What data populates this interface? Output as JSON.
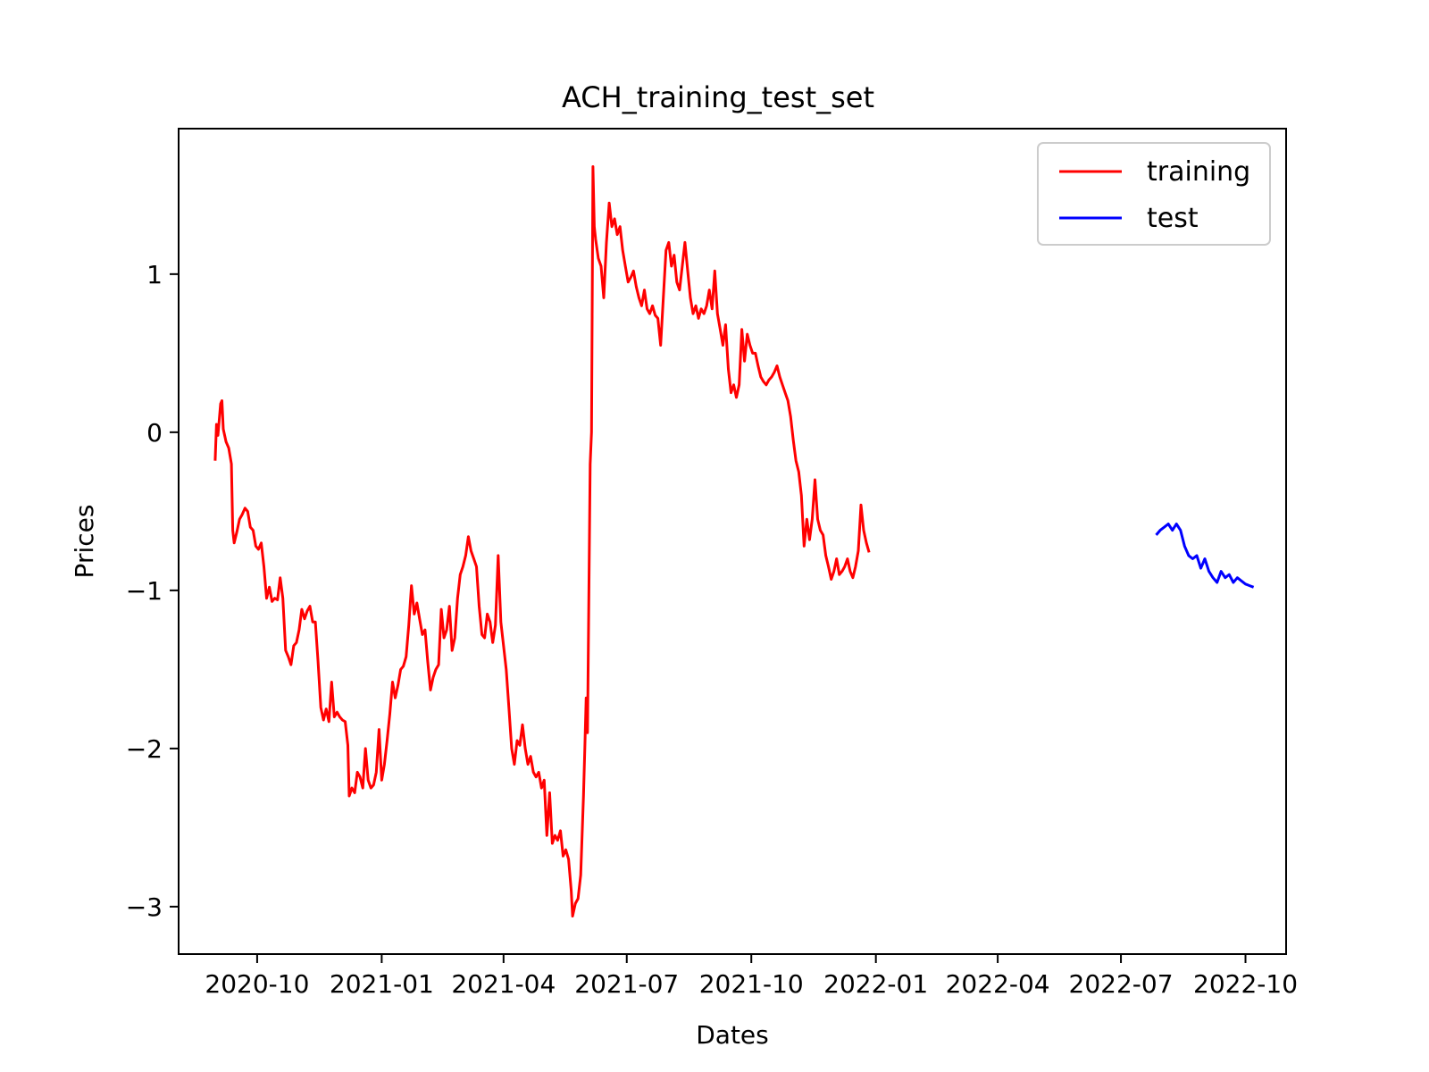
{
  "chart_data": {
    "type": "line",
    "title": "ACH_training_test_set",
    "xlabel": "Dates",
    "ylabel": "Prices",
    "x_ticks": [
      "2020-10",
      "2021-01",
      "2021-04",
      "2021-07",
      "2021-10",
      "2022-01",
      "2022-04",
      "2022-07",
      "2022-10"
    ],
    "y_ticks": [
      1,
      0,
      -1,
      -2,
      -3
    ],
    "y_tick_labels": [
      "1",
      "0",
      "−1",
      "−2",
      "−3"
    ],
    "xlim": [
      "2020-08-04",
      "2022-10-31"
    ],
    "ylim": [
      -3.3,
      1.92
    ],
    "grid": false,
    "legend_position": "top-right",
    "series": [
      {
        "name": "training",
        "color": "#ff0000",
        "points": [
          [
            "2020-08-31",
            -0.18
          ],
          [
            "2020-09-01",
            0.05
          ],
          [
            "2020-09-02",
            -0.02
          ],
          [
            "2020-09-03",
            0.08
          ],
          [
            "2020-09-04",
            0.18
          ],
          [
            "2020-09-05",
            0.2
          ],
          [
            "2020-09-06",
            0.02
          ],
          [
            "2020-09-08",
            -0.06
          ],
          [
            "2020-09-10",
            -0.1
          ],
          [
            "2020-09-12",
            -0.2
          ],
          [
            "2020-09-13",
            -0.62
          ],
          [
            "2020-09-14",
            -0.7
          ],
          [
            "2020-09-16",
            -0.63
          ],
          [
            "2020-09-18",
            -0.55
          ],
          [
            "2020-09-20",
            -0.52
          ],
          [
            "2020-09-22",
            -0.48
          ],
          [
            "2020-09-24",
            -0.5
          ],
          [
            "2020-09-26",
            -0.6
          ],
          [
            "2020-09-28",
            -0.62
          ],
          [
            "2020-09-30",
            -0.72
          ],
          [
            "2020-10-02",
            -0.74
          ],
          [
            "2020-10-04",
            -0.7
          ],
          [
            "2020-10-06",
            -0.85
          ],
          [
            "2020-10-08",
            -1.05
          ],
          [
            "2020-10-10",
            -0.98
          ],
          [
            "2020-10-12",
            -1.07
          ],
          [
            "2020-10-14",
            -1.05
          ],
          [
            "2020-10-16",
            -1.06
          ],
          [
            "2020-10-18",
            -0.92
          ],
          [
            "2020-10-20",
            -1.05
          ],
          [
            "2020-10-22",
            -1.38
          ],
          [
            "2020-10-24",
            -1.42
          ],
          [
            "2020-10-26",
            -1.47
          ],
          [
            "2020-10-28",
            -1.35
          ],
          [
            "2020-10-30",
            -1.33
          ],
          [
            "2020-11-01",
            -1.25
          ],
          [
            "2020-11-03",
            -1.12
          ],
          [
            "2020-11-05",
            -1.18
          ],
          [
            "2020-11-07",
            -1.13
          ],
          [
            "2020-11-09",
            -1.1
          ],
          [
            "2020-11-11",
            -1.2
          ],
          [
            "2020-11-13",
            -1.2
          ],
          [
            "2020-11-15",
            -1.45
          ],
          [
            "2020-11-17",
            -1.74
          ],
          [
            "2020-11-19",
            -1.82
          ],
          [
            "2020-11-21",
            -1.75
          ],
          [
            "2020-11-23",
            -1.83
          ],
          [
            "2020-11-25",
            -1.58
          ],
          [
            "2020-11-27",
            -1.8
          ],
          [
            "2020-11-29",
            -1.77
          ],
          [
            "2020-12-01",
            -1.8
          ],
          [
            "2020-12-03",
            -1.82
          ],
          [
            "2020-12-05",
            -1.83
          ],
          [
            "2020-12-07",
            -1.98
          ],
          [
            "2020-12-08",
            -2.3
          ],
          [
            "2020-12-10",
            -2.25
          ],
          [
            "2020-12-12",
            -2.28
          ],
          [
            "2020-12-14",
            -2.15
          ],
          [
            "2020-12-16",
            -2.18
          ],
          [
            "2020-12-18",
            -2.25
          ],
          [
            "2020-12-20",
            -2.0
          ],
          [
            "2020-12-22",
            -2.2
          ],
          [
            "2020-12-24",
            -2.25
          ],
          [
            "2020-12-26",
            -2.23
          ],
          [
            "2020-12-28",
            -2.15
          ],
          [
            "2020-12-30",
            -1.88
          ],
          [
            "2021-01-01",
            -2.2
          ],
          [
            "2021-01-03",
            -2.1
          ],
          [
            "2021-01-05",
            -1.95
          ],
          [
            "2021-01-07",
            -1.78
          ],
          [
            "2021-01-09",
            -1.58
          ],
          [
            "2021-01-11",
            -1.68
          ],
          [
            "2021-01-13",
            -1.6
          ],
          [
            "2021-01-15",
            -1.5
          ],
          [
            "2021-01-17",
            -1.48
          ],
          [
            "2021-01-19",
            -1.42
          ],
          [
            "2021-01-21",
            -1.22
          ],
          [
            "2021-01-23",
            -0.97
          ],
          [
            "2021-01-25",
            -1.15
          ],
          [
            "2021-01-27",
            -1.08
          ],
          [
            "2021-01-29",
            -1.18
          ],
          [
            "2021-01-31",
            -1.28
          ],
          [
            "2021-02-02",
            -1.25
          ],
          [
            "2021-02-04",
            -1.45
          ],
          [
            "2021-02-06",
            -1.63
          ],
          [
            "2021-02-08",
            -1.55
          ],
          [
            "2021-02-10",
            -1.5
          ],
          [
            "2021-02-12",
            -1.47
          ],
          [
            "2021-02-14",
            -1.12
          ],
          [
            "2021-02-16",
            -1.3
          ],
          [
            "2021-02-18",
            -1.25
          ],
          [
            "2021-02-20",
            -1.1
          ],
          [
            "2021-02-22",
            -1.38
          ],
          [
            "2021-02-24",
            -1.3
          ],
          [
            "2021-02-26",
            -1.05
          ],
          [
            "2021-02-28",
            -0.9
          ],
          [
            "2021-03-02",
            -0.85
          ],
          [
            "2021-03-04",
            -0.78
          ],
          [
            "2021-03-06",
            -0.66
          ],
          [
            "2021-03-08",
            -0.75
          ],
          [
            "2021-03-10",
            -0.8
          ],
          [
            "2021-03-12",
            -0.85
          ],
          [
            "2021-03-14",
            -1.1
          ],
          [
            "2021-03-16",
            -1.28
          ],
          [
            "2021-03-18",
            -1.3
          ],
          [
            "2021-03-20",
            -1.15
          ],
          [
            "2021-03-22",
            -1.2
          ],
          [
            "2021-03-24",
            -1.33
          ],
          [
            "2021-03-26",
            -1.22
          ],
          [
            "2021-03-28",
            -0.78
          ],
          [
            "2021-03-30",
            -1.2
          ],
          [
            "2021-04-01",
            -1.35
          ],
          [
            "2021-04-03",
            -1.5
          ],
          [
            "2021-04-05",
            -1.75
          ],
          [
            "2021-04-07",
            -2.0
          ],
          [
            "2021-04-09",
            -2.1
          ],
          [
            "2021-04-11",
            -1.95
          ],
          [
            "2021-04-13",
            -1.98
          ],
          [
            "2021-04-15",
            -1.85
          ],
          [
            "2021-04-17",
            -2.0
          ],
          [
            "2021-04-19",
            -2.1
          ],
          [
            "2021-04-21",
            -2.05
          ],
          [
            "2021-04-23",
            -2.15
          ],
          [
            "2021-04-25",
            -2.18
          ],
          [
            "2021-04-27",
            -2.15
          ],
          [
            "2021-04-29",
            -2.25
          ],
          [
            "2021-05-01",
            -2.2
          ],
          [
            "2021-05-03",
            -2.55
          ],
          [
            "2021-05-05",
            -2.28
          ],
          [
            "2021-05-07",
            -2.6
          ],
          [
            "2021-05-09",
            -2.55
          ],
          [
            "2021-05-11",
            -2.58
          ],
          [
            "2021-05-13",
            -2.52
          ],
          [
            "2021-05-15",
            -2.68
          ],
          [
            "2021-05-17",
            -2.64
          ],
          [
            "2021-05-19",
            -2.7
          ],
          [
            "2021-05-21",
            -2.9
          ],
          [
            "2021-05-22",
            -3.06
          ],
          [
            "2021-05-24",
            -2.98
          ],
          [
            "2021-05-26",
            -2.95
          ],
          [
            "2021-05-28",
            -2.8
          ],
          [
            "2021-05-30",
            -2.3
          ],
          [
            "2021-05-31",
            -2.0
          ],
          [
            "2021-06-01",
            -1.68
          ],
          [
            "2021-06-02",
            -1.9
          ],
          [
            "2021-06-04",
            -0.2
          ],
          [
            "2021-06-05",
            0.0
          ],
          [
            "2021-06-06",
            1.68
          ],
          [
            "2021-06-07",
            1.3
          ],
          [
            "2021-06-08",
            1.22
          ],
          [
            "2021-06-10",
            1.1
          ],
          [
            "2021-06-12",
            1.05
          ],
          [
            "2021-06-14",
            0.85
          ],
          [
            "2021-06-16",
            1.2
          ],
          [
            "2021-06-18",
            1.45
          ],
          [
            "2021-06-20",
            1.3
          ],
          [
            "2021-06-22",
            1.35
          ],
          [
            "2021-06-24",
            1.25
          ],
          [
            "2021-06-26",
            1.3
          ],
          [
            "2021-06-28",
            1.15
          ],
          [
            "2021-06-30",
            1.05
          ],
          [
            "2021-07-02",
            0.95
          ],
          [
            "2021-07-04",
            0.98
          ],
          [
            "2021-07-06",
            1.02
          ],
          [
            "2021-07-08",
            0.92
          ],
          [
            "2021-07-10",
            0.85
          ],
          [
            "2021-07-12",
            0.8
          ],
          [
            "2021-07-14",
            0.9
          ],
          [
            "2021-07-16",
            0.78
          ],
          [
            "2021-07-18",
            0.75
          ],
          [
            "2021-07-20",
            0.8
          ],
          [
            "2021-07-22",
            0.74
          ],
          [
            "2021-07-24",
            0.72
          ],
          [
            "2021-07-26",
            0.55
          ],
          [
            "2021-07-28",
            0.85
          ],
          [
            "2021-07-30",
            1.15
          ],
          [
            "2021-08-01",
            1.2
          ],
          [
            "2021-08-03",
            1.05
          ],
          [
            "2021-08-05",
            1.12
          ],
          [
            "2021-08-07",
            0.95
          ],
          [
            "2021-08-09",
            0.9
          ],
          [
            "2021-08-11",
            1.05
          ],
          [
            "2021-08-13",
            1.2
          ],
          [
            "2021-08-15",
            1.02
          ],
          [
            "2021-08-17",
            0.85
          ],
          [
            "2021-08-19",
            0.75
          ],
          [
            "2021-08-21",
            0.8
          ],
          [
            "2021-08-23",
            0.72
          ],
          [
            "2021-08-25",
            0.78
          ],
          [
            "2021-08-27",
            0.75
          ],
          [
            "2021-08-29",
            0.8
          ],
          [
            "2021-08-31",
            0.9
          ],
          [
            "2021-09-02",
            0.78
          ],
          [
            "2021-09-04",
            1.02
          ],
          [
            "2021-09-06",
            0.75
          ],
          [
            "2021-09-08",
            0.65
          ],
          [
            "2021-09-10",
            0.55
          ],
          [
            "2021-09-12",
            0.68
          ],
          [
            "2021-09-14",
            0.4
          ],
          [
            "2021-09-16",
            0.25
          ],
          [
            "2021-09-18",
            0.3
          ],
          [
            "2021-09-20",
            0.22
          ],
          [
            "2021-09-22",
            0.3
          ],
          [
            "2021-09-24",
            0.65
          ],
          [
            "2021-09-26",
            0.45
          ],
          [
            "2021-09-28",
            0.62
          ],
          [
            "2021-09-30",
            0.55
          ],
          [
            "2021-10-02",
            0.5
          ],
          [
            "2021-10-04",
            0.5
          ],
          [
            "2021-10-06",
            0.42
          ],
          [
            "2021-10-08",
            0.35
          ],
          [
            "2021-10-10",
            0.32
          ],
          [
            "2021-10-12",
            0.3
          ],
          [
            "2021-10-14",
            0.33
          ],
          [
            "2021-10-16",
            0.35
          ],
          [
            "2021-10-18",
            0.38
          ],
          [
            "2021-10-20",
            0.42
          ],
          [
            "2021-10-22",
            0.35
          ],
          [
            "2021-10-24",
            0.3
          ],
          [
            "2021-10-26",
            0.25
          ],
          [
            "2021-10-28",
            0.2
          ],
          [
            "2021-10-30",
            0.1
          ],
          [
            "2021-11-01",
            -0.05
          ],
          [
            "2021-11-03",
            -0.18
          ],
          [
            "2021-11-05",
            -0.25
          ],
          [
            "2021-11-07",
            -0.4
          ],
          [
            "2021-11-09",
            -0.72
          ],
          [
            "2021-11-11",
            -0.55
          ],
          [
            "2021-11-13",
            -0.68
          ],
          [
            "2021-11-15",
            -0.55
          ],
          [
            "2021-11-17",
            -0.3
          ],
          [
            "2021-11-19",
            -0.55
          ],
          [
            "2021-11-21",
            -0.62
          ],
          [
            "2021-11-23",
            -0.65
          ],
          [
            "2021-11-25",
            -0.78
          ],
          [
            "2021-11-27",
            -0.85
          ],
          [
            "2021-11-29",
            -0.93
          ],
          [
            "2021-12-01",
            -0.88
          ],
          [
            "2021-12-03",
            -0.8
          ],
          [
            "2021-12-05",
            -0.9
          ],
          [
            "2021-12-07",
            -0.88
          ],
          [
            "2021-12-09",
            -0.85
          ],
          [
            "2021-12-11",
            -0.8
          ],
          [
            "2021-12-13",
            -0.88
          ],
          [
            "2021-12-15",
            -0.92
          ],
          [
            "2021-12-17",
            -0.85
          ],
          [
            "2021-12-19",
            -0.75
          ],
          [
            "2021-12-21",
            -0.46
          ],
          [
            "2021-12-23",
            -0.62
          ],
          [
            "2021-12-25",
            -0.7
          ],
          [
            "2021-12-27",
            -0.76
          ]
        ]
      },
      {
        "name": "test",
        "color": "#0000ff",
        "points": [
          [
            "2022-07-27",
            -0.65
          ],
          [
            "2022-07-30",
            -0.62
          ],
          [
            "2022-08-02",
            -0.6
          ],
          [
            "2022-08-05",
            -0.58
          ],
          [
            "2022-08-08",
            -0.62
          ],
          [
            "2022-08-11",
            -0.58
          ],
          [
            "2022-08-14",
            -0.62
          ],
          [
            "2022-08-17",
            -0.72
          ],
          [
            "2022-08-20",
            -0.78
          ],
          [
            "2022-08-23",
            -0.8
          ],
          [
            "2022-08-26",
            -0.78
          ],
          [
            "2022-08-29",
            -0.86
          ],
          [
            "2022-09-01",
            -0.8
          ],
          [
            "2022-09-04",
            -0.88
          ],
          [
            "2022-09-07",
            -0.92
          ],
          [
            "2022-09-10",
            -0.95
          ],
          [
            "2022-09-13",
            -0.88
          ],
          [
            "2022-09-16",
            -0.92
          ],
          [
            "2022-09-19",
            -0.9
          ],
          [
            "2022-09-22",
            -0.95
          ],
          [
            "2022-09-25",
            -0.92
          ],
          [
            "2022-09-28",
            -0.94
          ],
          [
            "2022-10-01",
            -0.96
          ],
          [
            "2022-10-04",
            -0.97
          ],
          [
            "2022-10-07",
            -0.98
          ]
        ]
      }
    ]
  }
}
